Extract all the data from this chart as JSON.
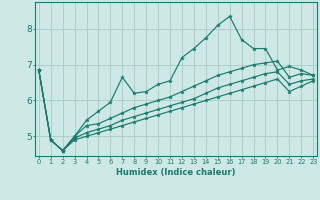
{
  "xlabel": "Humidex (Indice chaleur)",
  "background_color": "#cde8e5",
  "grid_color": "#aacfcc",
  "line_color": "#1a7a6e",
  "x_ticks": [
    0,
    1,
    2,
    3,
    4,
    5,
    6,
    7,
    8,
    9,
    10,
    11,
    12,
    13,
    14,
    15,
    16,
    17,
    18,
    19,
    20,
    21,
    22,
    23
  ],
  "y_ticks": [
    5,
    6,
    7,
    8
  ],
  "xlim": [
    -0.3,
    23.3
  ],
  "ylim": [
    4.45,
    8.75
  ],
  "series": [
    [
      6.85,
      4.9,
      4.6,
      5.0,
      5.45,
      5.7,
      5.95,
      6.65,
      6.2,
      6.25,
      6.45,
      6.55,
      7.2,
      7.45,
      7.75,
      8.1,
      8.35,
      7.7,
      7.45,
      7.45,
      6.85,
      6.95,
      6.85,
      6.7
    ],
    [
      6.85,
      4.9,
      4.6,
      5.0,
      5.3,
      5.35,
      5.5,
      5.65,
      5.8,
      5.9,
      6.0,
      6.1,
      6.25,
      6.4,
      6.55,
      6.7,
      6.8,
      6.9,
      7.0,
      7.05,
      7.1,
      6.65,
      6.75,
      6.7
    ],
    [
      6.85,
      4.9,
      4.6,
      4.95,
      5.1,
      5.2,
      5.3,
      5.45,
      5.55,
      5.65,
      5.75,
      5.85,
      5.95,
      6.05,
      6.2,
      6.35,
      6.45,
      6.55,
      6.65,
      6.75,
      6.8,
      6.45,
      6.55,
      6.6
    ],
    [
      6.85,
      4.9,
      4.6,
      4.9,
      5.0,
      5.1,
      5.2,
      5.3,
      5.4,
      5.5,
      5.6,
      5.7,
      5.8,
      5.9,
      6.0,
      6.1,
      6.2,
      6.3,
      6.4,
      6.5,
      6.6,
      6.25,
      6.4,
      6.55
    ]
  ]
}
